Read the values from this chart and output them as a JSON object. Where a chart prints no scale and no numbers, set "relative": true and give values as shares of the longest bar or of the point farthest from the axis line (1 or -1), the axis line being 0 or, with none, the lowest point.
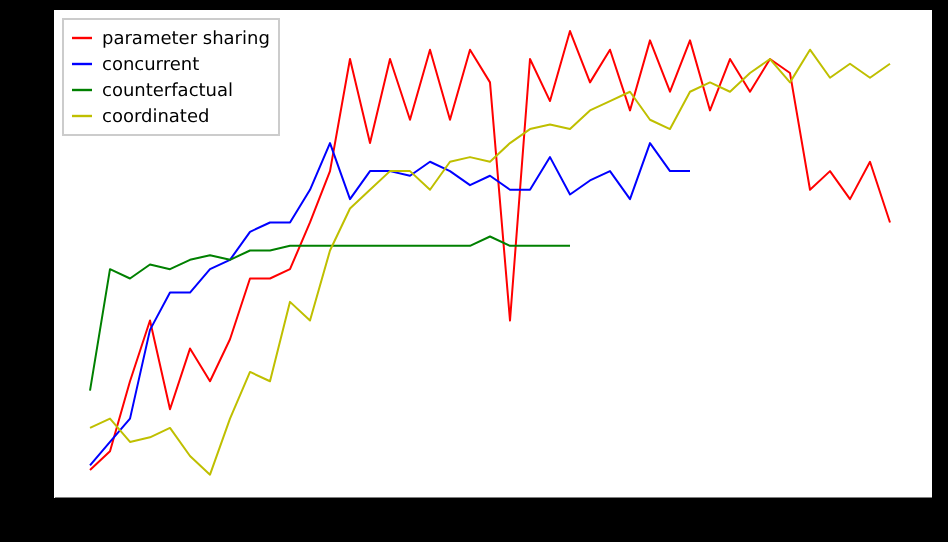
{
  "chart_data": {
    "type": "line",
    "relative": true,
    "legend": "top left",
    "categories": [
      null,
      null,
      null,
      null,
      null,
      null,
      null,
      null,
      null,
      null,
      null,
      null,
      null,
      null,
      null,
      null,
      null,
      null,
      null,
      null,
      null,
      null,
      null,
      null,
      null,
      null,
      null,
      null,
      null,
      null,
      null,
      null,
      null,
      null,
      null,
      null,
      null,
      null,
      null,
      null,
      null
    ],
    "series": [
      {
        "name": "parameter sharing",
        "color": "#ff0000",
        "values": [
          0.06,
          0.1,
          0.25,
          0.38,
          0.19,
          0.32,
          0.25,
          0.34,
          0.47,
          0.47,
          0.49,
          0.59,
          0.7,
          0.94,
          0.76,
          0.94,
          0.81,
          0.96,
          0.81,
          0.96,
          0.89,
          0.38,
          0.94,
          0.85,
          1.0,
          0.89,
          0.96,
          0.83,
          0.98,
          0.87,
          0.98,
          0.83,
          0.94,
          0.87,
          0.94,
          0.91,
          0.66,
          0.7,
          0.64,
          0.72,
          0.59
        ]
      },
      {
        "name": "concurrent",
        "color": "#0000ff",
        "values": [
          0.07,
          0.12,
          0.17,
          0.36,
          0.44,
          0.44,
          0.49,
          0.51,
          0.57,
          0.59,
          0.59,
          0.66,
          0.76,
          0.64,
          0.7,
          0.7,
          0.69,
          0.72,
          0.7,
          0.67,
          0.69,
          0.66,
          0.66,
          0.73,
          0.65,
          0.68,
          0.7,
          0.64,
          0.76,
          0.7,
          0.7,
          null,
          null,
          null,
          null,
          null,
          null,
          null,
          null,
          null,
          null
        ]
      },
      {
        "name": "counterfactual",
        "color": "#008000",
        "values": [
          0.23,
          0.49,
          0.47,
          0.5,
          0.49,
          0.51,
          0.52,
          0.51,
          0.53,
          0.53,
          0.54,
          0.54,
          0.54,
          0.54,
          0.54,
          0.54,
          0.54,
          0.54,
          0.54,
          0.54,
          0.56,
          0.54,
          0.54,
          0.54,
          0.54,
          null,
          null,
          null,
          null,
          null,
          null,
          null,
          null,
          null,
          null,
          null,
          null,
          null,
          null,
          null,
          null
        ]
      },
      {
        "name": "coordinated",
        "color": "#bfbf00",
        "values": [
          0.15,
          0.17,
          0.12,
          0.13,
          0.15,
          0.09,
          0.05,
          0.17,
          0.27,
          0.25,
          0.42,
          0.38,
          0.53,
          0.62,
          0.66,
          0.7,
          0.7,
          0.66,
          0.72,
          0.73,
          0.72,
          0.76,
          0.79,
          0.8,
          0.79,
          0.83,
          0.85,
          0.87,
          0.81,
          0.79,
          0.87,
          0.89,
          0.87,
          0.91,
          0.94,
          0.89,
          0.96,
          0.9,
          0.93,
          0.9,
          0.93
        ]
      }
    ]
  }
}
